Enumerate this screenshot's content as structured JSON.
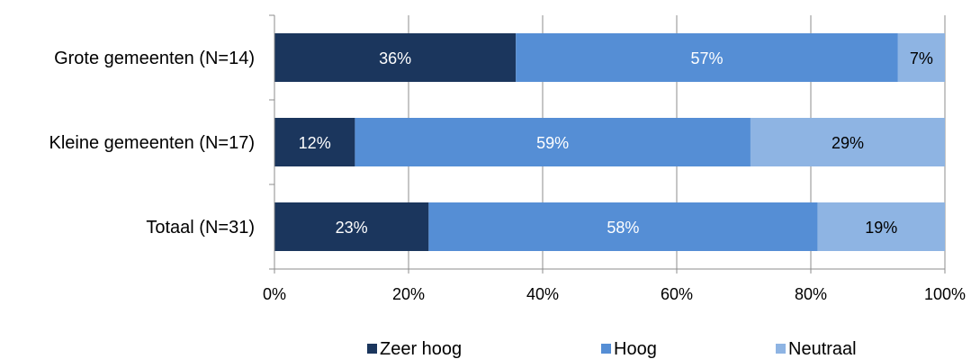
{
  "chart_data": {
    "type": "bar",
    "orientation": "horizontal",
    "stacked": "percent",
    "categories": [
      "Grote gemeenten (N=14)",
      "Kleine gemeenten (N=17)",
      "Totaal (N=31)"
    ],
    "series": [
      {
        "name": "Zeer hoog",
        "color": "#1b365d",
        "label_color": "#ffffff",
        "values": [
          36,
          12,
          23
        ],
        "labels": [
          "36%",
          "12%",
          "23%"
        ]
      },
      {
        "name": "Hoog",
        "color": "#558ed5",
        "label_color": "#ffffff",
        "values": [
          57,
          59,
          58
        ],
        "labels": [
          "57%",
          "59%",
          "58%"
        ]
      },
      {
        "name": "Neutraal",
        "color": "#8eb4e3",
        "label_color": "#000000",
        "values": [
          7,
          29,
          19
        ],
        "labels": [
          "7%",
          "29%",
          "19%"
        ]
      }
    ],
    "xlim": [
      0,
      100
    ],
    "xticks": [
      "0%",
      "20%",
      "40%",
      "60%",
      "80%",
      "100%"
    ],
    "grid": true,
    "legend_position": "bottom"
  }
}
